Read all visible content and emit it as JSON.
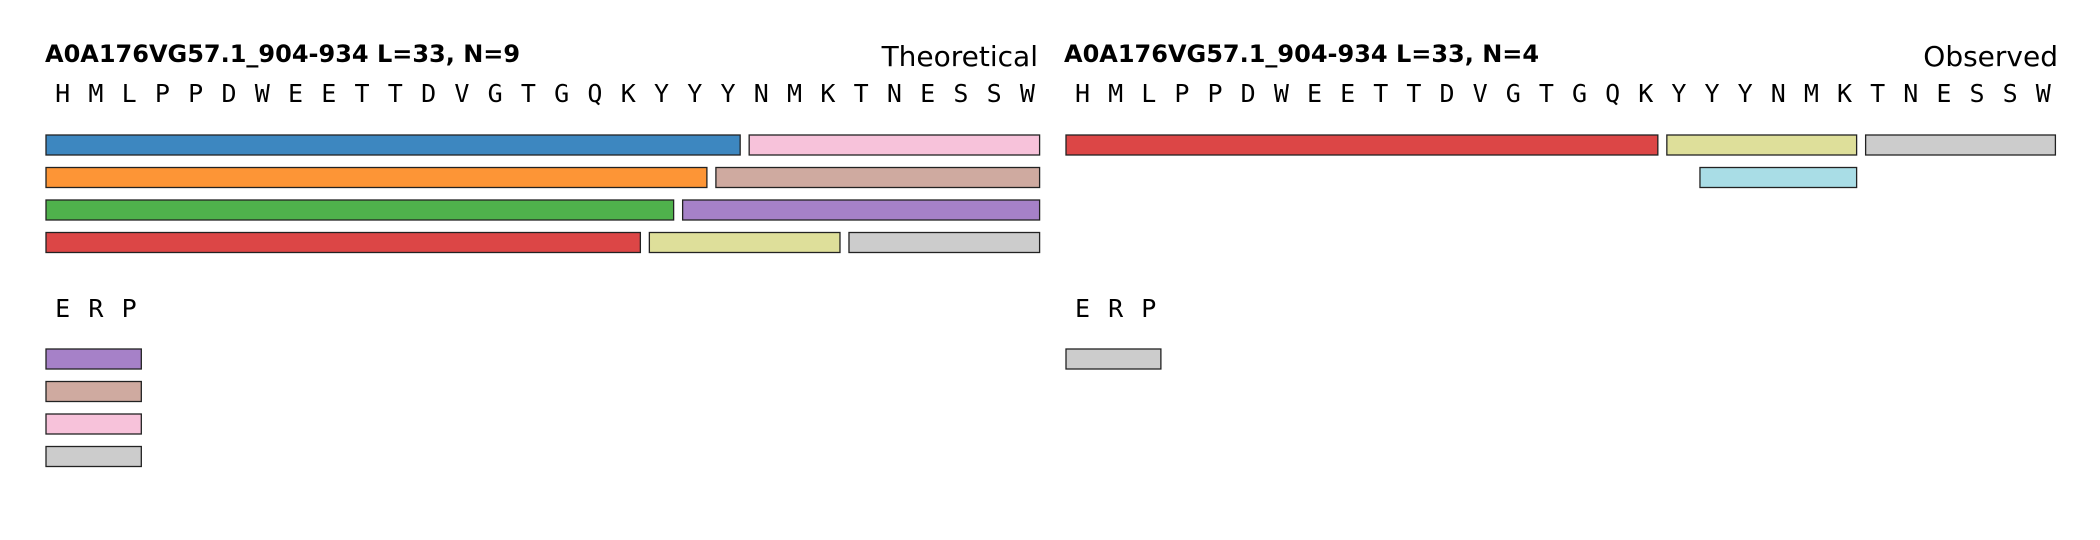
{
  "colors": {
    "blue": "#3d87c0",
    "pink": "#f7c2da",
    "orange": "#fd9536",
    "brown": "#cfaaa0",
    "green": "#4fb14c",
    "purple": "#a681c8",
    "red": "#dc4646",
    "olive": "#dedf9a",
    "gray": "#cccccc",
    "cyan": "#a9dde6"
  },
  "panels": [
    {
      "title": "A0A176VG57.1_904-934  L=33, N=9",
      "label": "Theoretical",
      "sequence": [
        "H",
        "M",
        "L",
        "P",
        "P",
        "D",
        "W",
        "E",
        "E",
        "T",
        "T",
        "D",
        "V",
        "G",
        "T",
        "G",
        "Q",
        "K",
        "Y",
        "Y",
        "Y",
        "N",
        "M",
        "K",
        "T",
        "N",
        "E",
        "S",
        "S",
        "W"
      ],
      "tail_sequence": [
        "E",
        "R",
        "P"
      ],
      "rows": [
        [
          {
            "start": 1,
            "end": 21,
            "color": "blue"
          },
          {
            "start": 22,
            "end": 30,
            "color": "pink"
          }
        ],
        [
          {
            "start": 1,
            "end": 20,
            "color": "orange"
          },
          {
            "start": 21,
            "end": 30,
            "color": "brown"
          }
        ],
        [
          {
            "start": 1,
            "end": 19,
            "color": "green"
          },
          {
            "start": 20,
            "end": 30,
            "color": "purple"
          }
        ],
        [
          {
            "start": 1,
            "end": 18,
            "color": "red"
          },
          {
            "start": 19,
            "end": 24,
            "color": "olive"
          },
          {
            "start": 25,
            "end": 30,
            "color": "gray"
          }
        ]
      ],
      "tail_rows": [
        [
          {
            "start": 1,
            "end": 3,
            "color": "purple"
          }
        ],
        [
          {
            "start": 1,
            "end": 3,
            "color": "brown"
          }
        ],
        [
          {
            "start": 1,
            "end": 3,
            "color": "pink"
          }
        ],
        [
          {
            "start": 1,
            "end": 3,
            "color": "gray"
          }
        ]
      ]
    },
    {
      "title": "A0A176VG57.1_904-934  L=33, N=4",
      "label": "Observed",
      "sequence": [
        "H",
        "M",
        "L",
        "P",
        "P",
        "D",
        "W",
        "E",
        "E",
        "T",
        "T",
        "D",
        "V",
        "G",
        "T",
        "G",
        "Q",
        "K",
        "Y",
        "Y",
        "Y",
        "N",
        "M",
        "K",
        "T",
        "N",
        "E",
        "S",
        "S",
        "W"
      ],
      "tail_sequence": [
        "E",
        "R",
        "P"
      ],
      "rows": [
        [
          {
            "start": 1,
            "end": 18,
            "color": "red"
          },
          {
            "start": 19,
            "end": 24,
            "color": "olive"
          },
          {
            "start": 25,
            "end": 30,
            "color": "gray"
          }
        ],
        [
          {
            "start": 20,
            "end": 24,
            "color": "cyan"
          }
        ]
      ],
      "tail_rows": [
        [
          {
            "start": 1,
            "end": 3,
            "color": "gray"
          }
        ]
      ]
    }
  ]
}
